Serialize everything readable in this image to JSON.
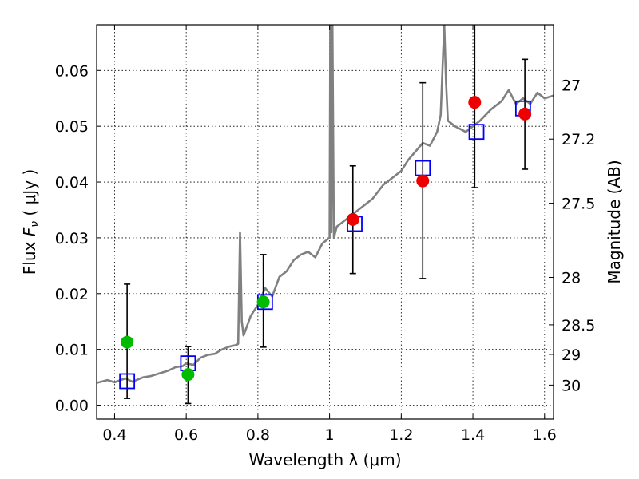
{
  "chart_data": {
    "type": "scatter",
    "title": "",
    "xlabel": "Wavelength  λ (μm)",
    "ylabel_left": "Flux  F_ν  ( μJy )",
    "ylabel_right": "Magnitude (AB)",
    "xlim": [
      0.35,
      1.625
    ],
    "ylim": [
      -0.0025,
      0.0682
    ],
    "xticks": [
      0.4,
      0.6,
      0.8,
      1.0,
      1.2,
      1.4,
      1.6
    ],
    "xtick_labels": [
      "0.4",
      "0.6",
      "0.8",
      "1",
      "1.2",
      "1.4",
      "1.6"
    ],
    "yticks": [
      0.0,
      0.01,
      0.02,
      0.03,
      0.04,
      0.05,
      0.06
    ],
    "ytick_labels": [
      "0.00",
      "0.01",
      "0.02",
      "0.03",
      "0.04",
      "0.05",
      "0.06"
    ],
    "right_axis": {
      "labels": [
        "27",
        "27.2",
        "27.5",
        "28",
        "28.5",
        "29",
        "30"
      ],
      "flux_positions": [
        0.0574,
        0.0477,
        0.0362,
        0.0229,
        0.0144,
        0.0091,
        0.0036
      ]
    },
    "grid": true,
    "colors": {
      "sed": "#808080",
      "model_box": "#0000ff",
      "green": "#00bb00",
      "red": "#ee0000",
      "errorbar": "#000000"
    },
    "sed_spectrum": {
      "x": [
        0.35,
        0.38,
        0.4,
        0.43,
        0.45,
        0.48,
        0.5,
        0.53,
        0.55,
        0.57,
        0.59,
        0.6,
        0.62,
        0.64,
        0.66,
        0.68,
        0.7,
        0.72,
        0.74,
        0.745,
        0.75,
        0.755,
        0.76,
        0.78,
        0.8,
        0.82,
        0.84,
        0.86,
        0.88,
        0.9,
        0.92,
        0.94,
        0.96,
        0.98,
        1.0,
        1.002,
        1.005,
        1.008,
        1.012,
        1.02,
        1.04,
        1.06,
        1.08,
        1.1,
        1.12,
        1.15,
        1.18,
        1.2,
        1.22,
        1.24,
        1.26,
        1.28,
        1.3,
        1.31,
        1.315,
        1.32,
        1.325,
        1.33,
        1.35,
        1.38,
        1.4,
        1.42,
        1.45,
        1.48,
        1.5,
        1.52,
        1.54,
        1.56,
        1.58,
        1.6,
        1.625
      ],
      "y": [
        0.004,
        0.0045,
        0.0041,
        0.0048,
        0.0042,
        0.005,
        0.0052,
        0.0058,
        0.0062,
        0.0068,
        0.007,
        0.0075,
        0.0072,
        0.0085,
        0.009,
        0.0092,
        0.01,
        0.0105,
        0.0108,
        0.011,
        0.031,
        0.015,
        0.0125,
        0.016,
        0.018,
        0.021,
        0.0195,
        0.023,
        0.024,
        0.026,
        0.027,
        0.0275,
        0.0265,
        0.029,
        0.03,
        0.0682,
        0.031,
        0.0682,
        0.03,
        0.032,
        0.033,
        0.034,
        0.035,
        0.036,
        0.037,
        0.0395,
        0.041,
        0.042,
        0.044,
        0.0455,
        0.047,
        0.0465,
        0.049,
        0.052,
        0.06,
        0.0682,
        0.058,
        0.051,
        0.05,
        0.049,
        0.05,
        0.051,
        0.053,
        0.0545,
        0.0565,
        0.054,
        0.055,
        0.054,
        0.056,
        0.055,
        0.0555
      ]
    },
    "series": [
      {
        "marker": "open-square",
        "color": "#0000ff",
        "x": [
          0.435,
          0.605,
          0.82,
          1.07,
          1.26,
          1.41,
          1.54
        ],
        "y": [
          0.0043,
          0.0075,
          0.0185,
          0.0325,
          0.0425,
          0.049,
          0.0532
        ]
      },
      {
        "marker": "filled-circle",
        "color": "#00bb00",
        "x": [
          0.435,
          0.605,
          0.815
        ],
        "y": [
          0.0113,
          0.0055,
          0.0185
        ],
        "err_low": [
          0.0012,
          0.0003,
          0.0104
        ],
        "err_high": [
          0.0217,
          0.0105,
          0.027
        ]
      },
      {
        "marker": "filled-circle",
        "color": "#ee0000",
        "x": [
          1.065,
          1.26,
          1.405,
          1.545
        ],
        "y": [
          0.0333,
          0.0402,
          0.0543,
          0.0522
        ],
        "err_low": [
          0.0236,
          0.0227,
          0.039,
          0.0423
        ],
        "err_high": [
          0.0429,
          0.0578,
          0.0682,
          0.062
        ]
      }
    ]
  }
}
